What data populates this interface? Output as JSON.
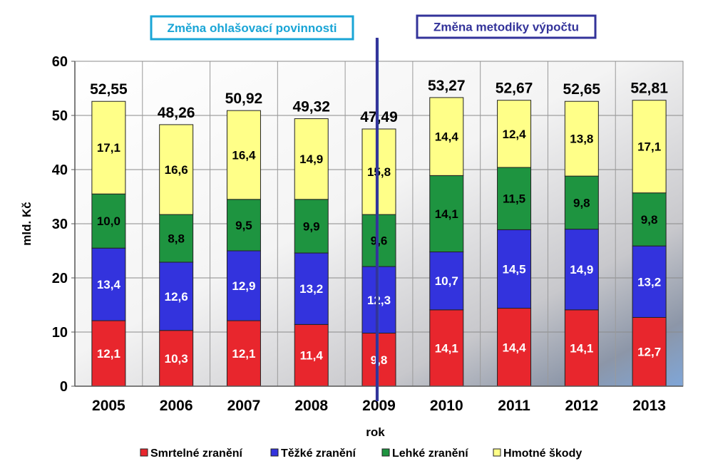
{
  "chart_data": {
    "type": "stacked-bar",
    "ylabel": "mld. Kč",
    "xlabel": "rok",
    "ylim": [
      0,
      60
    ],
    "yticks": [
      "0",
      "10",
      "20",
      "30",
      "40",
      "50",
      "60"
    ],
    "categories": [
      "2005",
      "2006",
      "2007",
      "2008",
      "2009",
      "2010",
      "2011",
      "2012",
      "2013"
    ],
    "totals": [
      "52,55",
      "48,26",
      "50,92",
      "49,32",
      "47,49",
      "53,27",
      "52,67",
      "52,65",
      "52,81"
    ],
    "series": [
      {
        "name": "Smrtelné zranění",
        "color": "#e8262d",
        "label_color": "#ffffff",
        "values": [
          12.1,
          10.3,
          12.1,
          11.4,
          9.8,
          14.1,
          14.4,
          14.1,
          12.7
        ],
        "labels": [
          "12,1",
          "10,3",
          "12,1",
          "11,4",
          "9,8",
          "14,1",
          "14,4",
          "14,1",
          "12,7"
        ]
      },
      {
        "name": "Těžké zranění",
        "color": "#3333dd",
        "label_color": "#ffffff",
        "values": [
          13.4,
          12.6,
          12.9,
          13.2,
          12.3,
          10.7,
          14.5,
          14.9,
          13.2
        ],
        "labels": [
          "13,4",
          "12,6",
          "12,9",
          "13,2",
          "12,3",
          "10,7",
          "14,5",
          "14,9",
          "13,2"
        ]
      },
      {
        "name": "Lehké zranění",
        "color": "#1e9440",
        "label_color": "#000000",
        "values": [
          10.0,
          8.8,
          9.5,
          9.9,
          9.6,
          14.1,
          11.5,
          9.8,
          9.8
        ],
        "labels": [
          "10,0",
          "8,8",
          "9,5",
          "9,9",
          "9,6",
          "14,1",
          "11,5",
          "9,8",
          "9,8"
        ]
      },
      {
        "name": "Hmotné škody",
        "color": "#ffff88",
        "label_color": "#000000",
        "values": [
          17.1,
          16.6,
          16.4,
          14.9,
          15.8,
          14.4,
          12.4,
          13.8,
          17.1
        ],
        "labels": [
          "17,1",
          "16,6",
          "16,4",
          "14,9",
          "15,8",
          "14,4",
          "12,4",
          "13,8",
          "17,1"
        ]
      }
    ],
    "annotations": [
      {
        "text": "Změna ohlašovací povinnosti",
        "color": "#1aa5d6",
        "between": [
          "2008",
          "2009"
        ]
      },
      {
        "text": "Změna metodiky výpočtu",
        "color": "#33339a",
        "between": [
          "2009",
          "2010"
        ]
      }
    ],
    "legend_position": "bottom"
  }
}
